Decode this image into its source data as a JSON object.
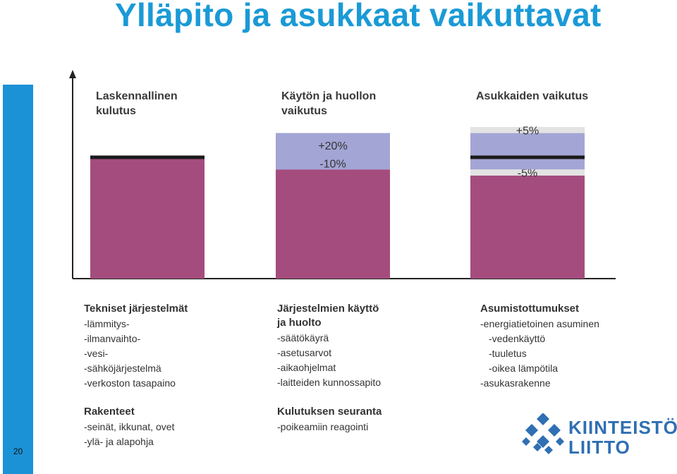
{
  "slide": {
    "title": "Ylläpito ja asukkaat vaikuttavat",
    "number": "20"
  },
  "colors": {
    "title": "#1a9ad6",
    "sidebar": "#1b92d6",
    "base_bar": "#a44c7e",
    "band_blue": "#a3a5d5",
    "band_gray": "#e3e3e3",
    "reference_line": "#1a1a1a"
  },
  "chart_data": {
    "type": "bar",
    "categories": [
      "Laskennallinen kulutus",
      "Käytön ja huollon vaikutus",
      "Asukkaiden vaikutus"
    ],
    "heading_lines": [
      [
        "Laskennallinen",
        "kulutus"
      ],
      [
        "Käytön ja huollon",
        "vaikutus"
      ],
      [
        "Asukkaiden vaikutus"
      ]
    ],
    "reference_value": 100,
    "ylim": [
      0,
      170
    ],
    "grid": false,
    "bars": [
      {
        "category": "Laskennallinen kulutus",
        "base": 100,
        "bands": [],
        "show_reference_line": true
      },
      {
        "category": "Käytön ja huollon vaikutus",
        "base": 90,
        "bands": [
          {
            "from": 90,
            "to": 100,
            "color": "band_blue",
            "label": "-10%"
          },
          {
            "from": 100,
            "to": 120,
            "color": "band_blue",
            "label": "+20%"
          }
        ],
        "show_reference_line": false
      },
      {
        "category": "Asukkaiden vaikutus",
        "base": 85,
        "bands": [
          {
            "from": 85,
            "to": 90,
            "color": "band_gray",
            "label": "-5%"
          },
          {
            "from": 90,
            "to": 100,
            "color": "band_blue",
            "label": ""
          },
          {
            "from": 100,
            "to": 120,
            "color": "band_blue",
            "label": ""
          },
          {
            "from": 120,
            "to": 125,
            "color": "band_gray",
            "label": "+5%"
          }
        ],
        "show_reference_line": true
      }
    ]
  },
  "factors": {
    "col1": {
      "group1": {
        "heading": "Tekniset järjestelmät",
        "items": [
          "-lämmitys-",
          "-ilmanvaihto-",
          "-vesi-",
          "-sähköjärjestelmä",
          "-verkoston tasapaino"
        ]
      },
      "group2": {
        "heading": "Rakenteet",
        "items": [
          "-seinät, ikkunat, ovet",
          "-ylä- ja alapohja"
        ]
      }
    },
    "col2": {
      "group1": {
        "heading": "Järjestelmien käyttö\nja huolto",
        "items": [
          "-säätökäyrä",
          "-asetusarvot",
          "-aikaohjelmat",
          "-laitteiden kunnossapito"
        ]
      },
      "group2": {
        "heading": "Kulutuksen seuranta",
        "items": [
          "-poikeamiin reagointi"
        ]
      }
    },
    "col3": {
      "group1": {
        "heading": "Asumistottumukset",
        "items": [
          "-energiatietoinen asuminen",
          "-vedenkäyttö",
          "-tuuletus",
          "-oikea lämpötila",
          "-asukasrakenne"
        ]
      }
    }
  },
  "logo": {
    "line1": "KIINTEISTÖ",
    "line2": "LIITTO",
    "mark_color": "#2f6fb3"
  }
}
